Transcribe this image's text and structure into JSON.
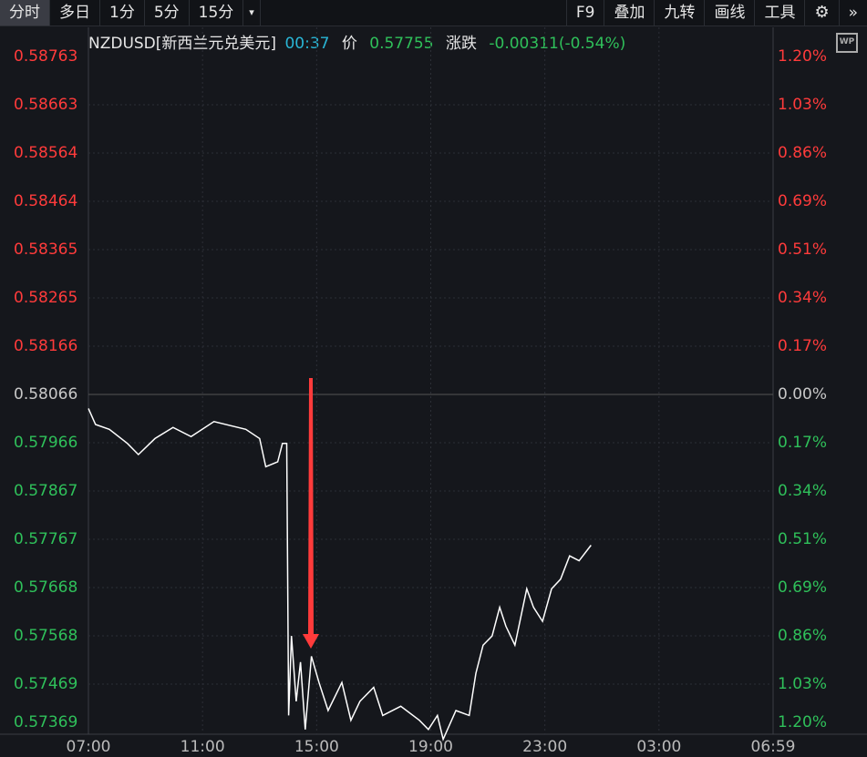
{
  "toolbar": {
    "tabs": [
      "分时",
      "多日",
      "1分",
      "5分",
      "15分"
    ],
    "more": "▾",
    "right": [
      "F9",
      "叠加",
      "九转",
      "画线",
      "工具"
    ],
    "settings_icon": "gear-icon",
    "expand_icon": "double-chevron-right-icon"
  },
  "header": {
    "symbol": "NZDUSD[新西兰元兑美元]",
    "time": "00:37",
    "price_label": "价",
    "price": "0.57755",
    "change_label": "涨跌",
    "change": "-0.00311(-0.54%)",
    "wp_badge": "WP"
  },
  "colors": {
    "up": "#ff3b3b",
    "down": "#2fc05a",
    "neutral": "#c8c8c8",
    "time": "#29b6d6",
    "line": "#ffffff",
    "arrow": "#ff3b3b"
  },
  "chart_data": {
    "type": "line",
    "prev_close": 0.58066,
    "left_ticks": [
      "0.58763",
      "0.58663",
      "0.58564",
      "0.58464",
      "0.58365",
      "0.58265",
      "0.58166",
      "0.58066",
      "0.57966",
      "0.57867",
      "0.57767",
      "0.57668",
      "0.57568",
      "0.57469",
      "0.57369"
    ],
    "right_ticks": [
      "1.20%",
      "1.03%",
      "0.86%",
      "0.69%",
      "0.51%",
      "0.34%",
      "0.17%",
      "0.00%",
      "0.17%",
      "0.34%",
      "0.51%",
      "0.69%",
      "0.86%",
      "1.03%",
      "1.20%"
    ],
    "x_ticks": [
      "07:00",
      "11:00",
      "15:00",
      "19:00",
      "23:00",
      "03:00",
      "06:59"
    ],
    "ylim": [
      0.57369,
      0.58763
    ],
    "xlim": [
      "07:00",
      "06:59"
    ],
    "x": [
      "07:00",
      "07:15",
      "07:44",
      "08:22",
      "08:45",
      "09:20",
      "09:58",
      "10:36",
      "11:24",
      "12:31",
      "13:00",
      "13:13",
      "13:38",
      "13:48",
      "13:57",
      "14:01",
      "14:07",
      "14:17",
      "14:26",
      "14:36",
      "14:49",
      "15:05",
      "15:24",
      "15:53",
      "16:12",
      "16:31",
      "17:00",
      "17:19",
      "17:57",
      "18:36",
      "18:55",
      "19:14",
      "19:26",
      "19:53",
      "20:21",
      "20:35",
      "20:50",
      "21:09",
      "21:25",
      "21:38",
      "21:57",
      "22:22",
      "22:36",
      "22:55",
      "23:14",
      "23:33",
      "23:52",
      "00:12",
      "00:37"
    ],
    "y": [
      0.58037,
      0.58004,
      0.57994,
      0.57965,
      0.57942,
      0.57975,
      0.57998,
      0.57979,
      0.5801,
      0.57994,
      0.57975,
      0.57917,
      0.57927,
      0.57965,
      0.57965,
      0.57404,
      0.57568,
      0.57433,
      0.57514,
      0.57375,
      0.57526,
      0.57472,
      0.57414,
      0.57472,
      0.57394,
      0.57433,
      0.57462,
      0.57404,
      0.57423,
      0.57394,
      0.57375,
      0.57404,
      0.57355,
      0.57414,
      0.57404,
      0.57491,
      0.57549,
      0.57568,
      0.57627,
      0.57588,
      0.57549,
      0.57665,
      0.57627,
      0.57598,
      0.57665,
      0.57685,
      0.57733,
      0.57723,
      0.57755
    ],
    "annotation": "red-down-arrow"
  }
}
